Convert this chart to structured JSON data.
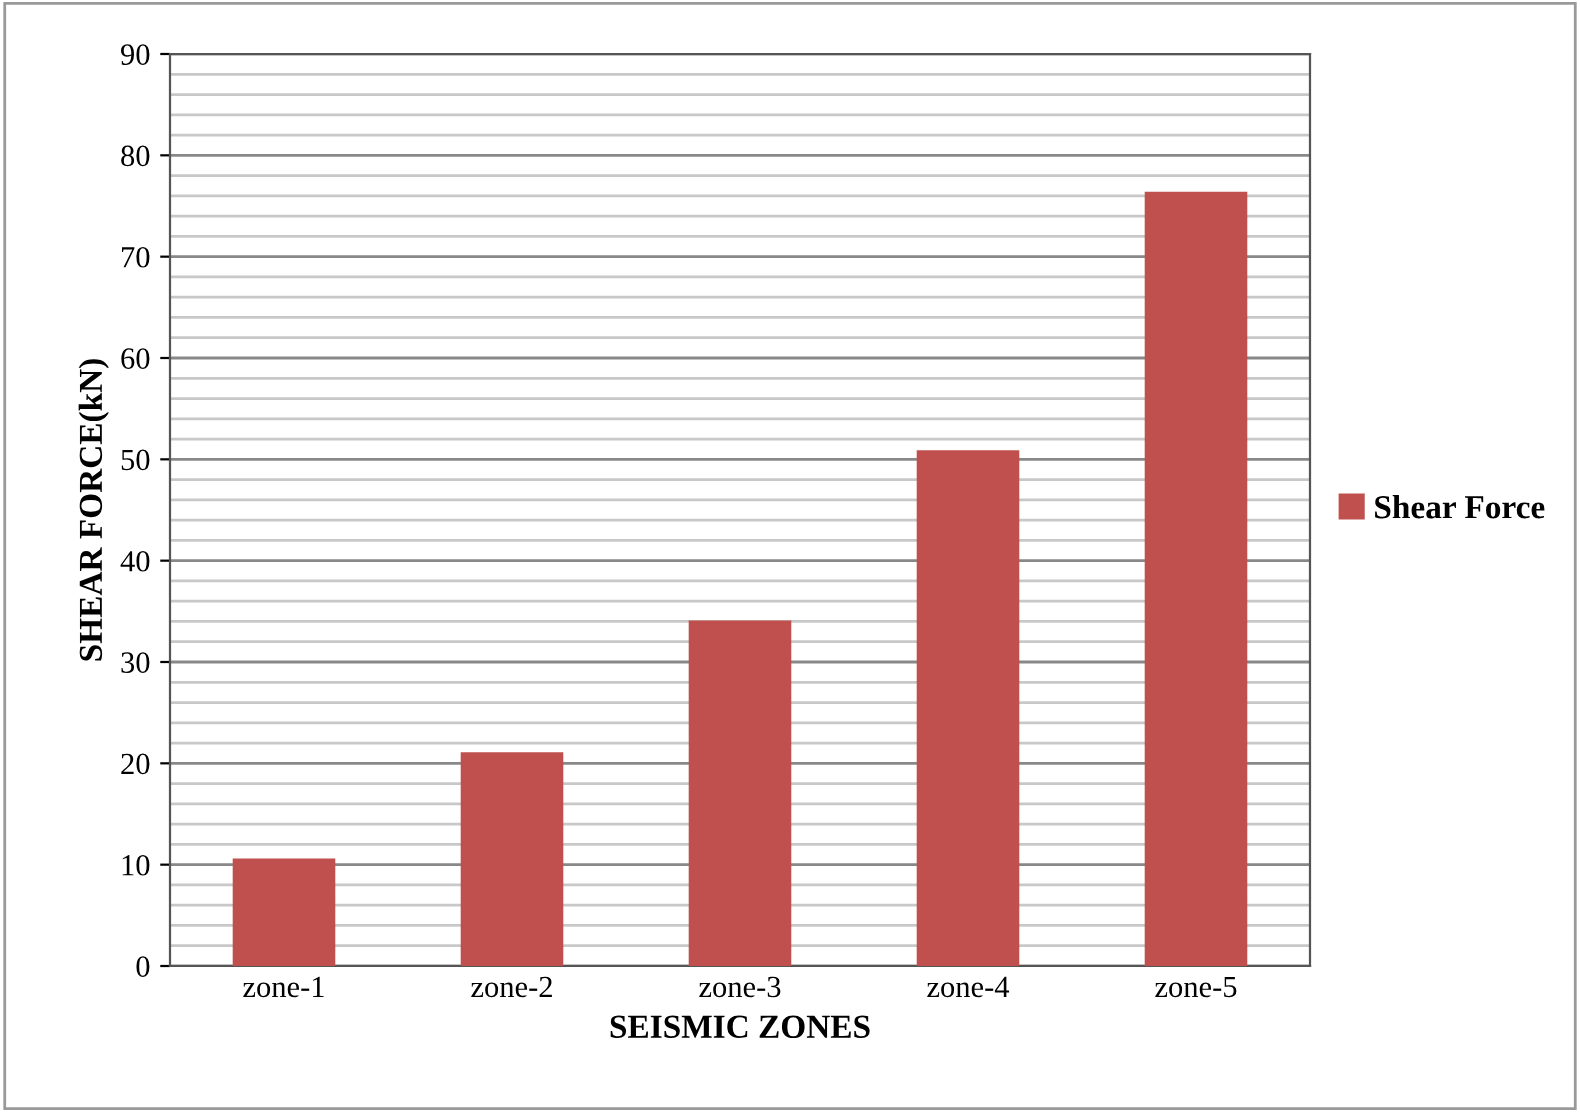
{
  "chart_data": {
    "type": "bar",
    "xlabel": "SEISMIC ZONES",
    "ylabel": "SHEAR FORCE(kN)",
    "categories": [
      "zone-1",
      "zone-2",
      "zone-3",
      "zone-4",
      "zone-5"
    ],
    "series": [
      {
        "name": "Shear Force",
        "color": "#c0504d",
        "values": [
          10.6,
          21.1,
          34.1,
          50.9,
          76.4
        ]
      }
    ],
    "ylim": [
      0,
      90
    ],
    "yticks": [
      0,
      10,
      20,
      30,
      40,
      50,
      60,
      70,
      80,
      90
    ],
    "grid": "y",
    "legend": "right"
  }
}
